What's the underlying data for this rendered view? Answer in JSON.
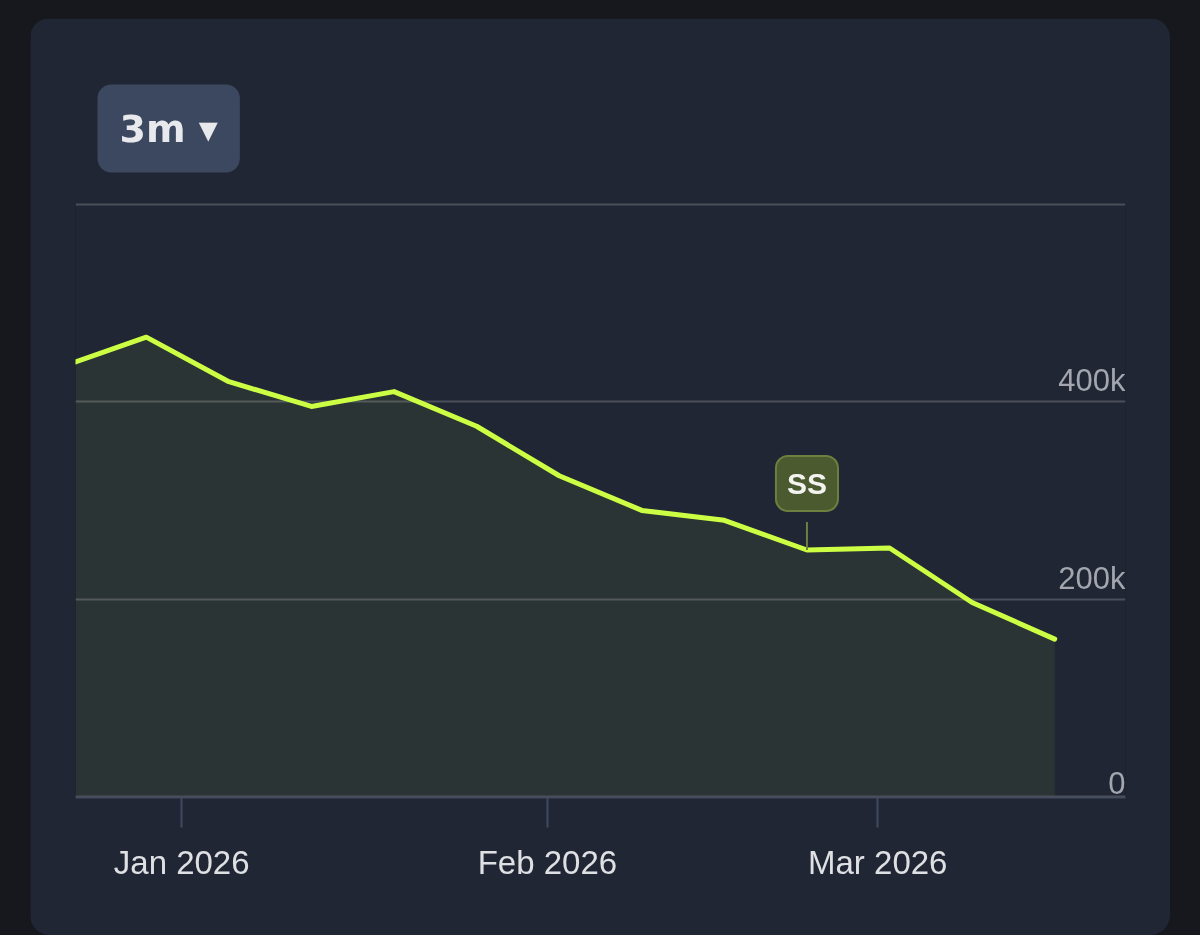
{
  "chart_data": {
    "type": "area",
    "annotations": [
      "3m ▾",
      {
        "text": "SS",
        "x": "2026-02-23",
        "y": 250000
      }
    ],
    "x": [
      "2025-12-23",
      "2025-12-29",
      "2026-01-05",
      "2026-01-12",
      "2026-01-19",
      "2026-01-26",
      "2026-02-02",
      "2026-02-09",
      "2026-02-16",
      "2026-02-23",
      "2026-03-02",
      "2026-03-09",
      "2026-03-16"
    ],
    "series": [
      {
        "color": "#ccff44",
        "values": [
          440000,
          465000,
          420000,
          395000,
          410000,
          375000,
          325000,
          290000,
          280000,
          250000,
          252000,
          197000,
          160000
        ]
      }
    ],
    "xlim": [
      "2025-12-23",
      "2026-03-22"
    ],
    "xticks": [
      {
        "value": "2026-01-01",
        "label": "Jan 2026"
      },
      {
        "value": "2026-02-01",
        "label": "Feb 2026"
      },
      {
        "value": "2026-03-01",
        "label": "Mar 2026"
      }
    ],
    "ylim": [
      0,
      600000
    ],
    "yticks": [
      0,
      {
        "value": 200000,
        "label": "200k"
      },
      {
        "value": 400000,
        "label": "400k"
      },
      {
        "value": 600000,
        "label": null
      }
    ],
    "grid": "y"
  }
}
